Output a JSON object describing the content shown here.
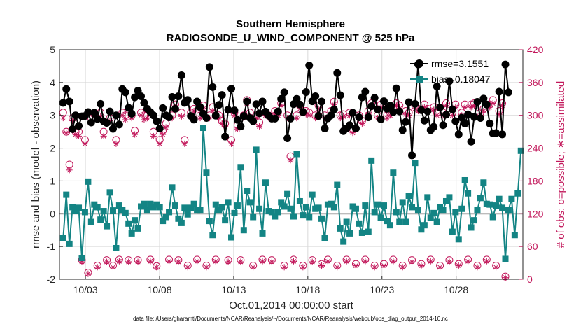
{
  "chart_data": {
    "type": "line",
    "title": "Southern Hemisphere",
    "subtitle": "RADIOSONDE_U_WIND_COMPONENT @ 525 hPa",
    "xlabel": "Oct.01,2014 00:00:00 start",
    "ylabel": "rmse and bias (model - observation)",
    "ylabel_right": "# of obs: o=possible; ∗=assimilated",
    "footnote": "data file: /Users/gharamti/Documents/NCAR/Reanalysis/~/Documents/NCAR/Reanalysis/webpub/obs_diag_output_2014-10.nc",
    "x_ticks": [
      "10/03",
      "10/08",
      "10/13",
      "10/18",
      "10/23",
      "10/28"
    ],
    "x_tick_days": [
      3,
      8,
      13,
      18,
      23,
      28
    ],
    "xlim_days": [
      1.25,
      32.5
    ],
    "ylim": [
      -2,
      5
    ],
    "y_ticks": [
      "-2",
      "-1",
      "0",
      "1",
      "2",
      "3",
      "4",
      "5"
    ],
    "ylim_right": [
      0,
      420
    ],
    "y_ticks_right": [
      "0",
      "60",
      "120",
      "180",
      "240",
      "300",
      "360",
      "420"
    ],
    "grid": true,
    "legend_placement": "top-right",
    "colors": {
      "rmse": "#000000",
      "bias": "#138484",
      "obs_count": "#c2185b",
      "zero_line": "#a6a6a6",
      "grid": "#d9d9d9"
    },
    "series": [
      {
        "name": "rmse",
        "legend_label": "rmse=3.1551",
        "axis": "left",
        "marker": "circle",
        "values": [
          3.38,
          3.8,
          3.42,
          2.58,
          3.0,
          2.68,
          2.97,
          2.98,
          3.1,
          2.78,
          3.08,
          2.89,
          3.35,
          2.82,
          2.77,
          3.12,
          2.59,
          3.0,
          2.72,
          3.8,
          3.7,
          3.23,
          3.05,
          3.55,
          3.75,
          3.58,
          3.38,
          3.2,
          3.1,
          3.0,
          2.82,
          2.6,
          3.22,
          3.0,
          2.94,
          3.56,
          3.2,
          3.58,
          4.22,
          3.38,
          3.47,
          2.98,
          2.87,
          3.42,
          3.25,
          3.05,
          2.92,
          4.47,
          3.86,
          2.99,
          3.32,
          3.62,
          2.35,
          3.17,
          3.81,
          3.15,
          2.86,
          2.66,
          2.98,
          3.42,
          2.92,
          2.82,
          3.34,
          3.06,
          3.42,
          3.11,
          2.99,
          2.9,
          2.9,
          3.12,
          3.5,
          3.7,
          2.3,
          2.9,
          3.34,
          3.5,
          3.33,
          3.1,
          3.71,
          4.52,
          3.43,
          3.58,
          2.98,
          3.42,
          2.6,
          2.91,
          3.0,
          3.18,
          4.29,
          3.61,
          2.52,
          2.6,
          2.7,
          3.08,
          2.6,
          2.94,
          3.55,
          3.72,
          2.94,
          3.28,
          3.53,
          3.18,
          2.88,
          3.43,
          3.2,
          3.3,
          3.1,
          3.82,
          3.12,
          2.55,
          2.8,
          3.4,
          1.78,
          3.35,
          4.55,
          3.16,
          2.84,
          3.12,
          2.55,
          2.65,
          3.88,
          3.24,
          2.7,
          3.02,
          4.04,
          3.18,
          2.82,
          2.42,
          2.93,
          2.75,
          3.03,
          2.2,
          2.95,
          3.41,
          2.92,
          3.51,
          3.33,
          2.75,
          2.45,
          2.46,
          3.72,
          2.42,
          4.55,
          3.7
        ]
      },
      {
        "name": "bias",
        "legend_label": "bias=0.18047",
        "axis": "left",
        "marker": "square",
        "values": [
          -0.75,
          0.58,
          -0.92,
          0.2,
          0.1,
          0.18,
          -1.35,
          0.05,
          0.98,
          -0.25,
          0.28,
          0.2,
          -0.18,
          0.08,
          -0.38,
          0.65,
          0.1,
          -1.05,
          0.25,
          0.12,
          0.02,
          -0.3,
          -0.6,
          -0.2,
          -0.45,
          0.22,
          0.3,
          0.12,
          0.3,
          0.2,
          0.28,
          0.2,
          -0.22,
          -0.1,
          0.05,
          0.8,
          0.25,
          -0.15,
          -0.28,
          0.18,
          -0.02,
          0.18,
          0.3,
          0.12,
          0.12,
          2.62,
          1.25,
          -0.22,
          -0.65,
          0.28,
          0.12,
          0.2,
          -0.2,
          0.35,
          -0.72,
          0.02,
          0.25,
          1.42,
          -0.5,
          0.7,
          0.35,
          -0.1,
          1.95,
          0.15,
          -0.6,
          0.95,
          0.08,
          0.05,
          -0.08,
          0.05,
          0.35,
          0.22,
          0.6,
          0.15,
          -0.08,
          1.82,
          0.38,
          -0.05,
          0.2,
          -0.1,
          0.58,
          0.15,
          0.18,
          -0.15,
          -0.75,
          0.28,
          0.3,
          0.2,
          0.88,
          -0.45,
          -0.85,
          -0.25,
          -0.6,
          0.22,
          0.15,
          -0.3,
          -0.58,
          0.25,
          -0.55,
          1.62,
          0.05,
          0.28,
          -0.12,
          0.25,
          -0.22,
          -0.35,
          1.25,
          0.05,
          -0.25,
          0.35,
          -0.25,
          0.55,
          0.2,
          1.55,
          0.12,
          -0.48,
          -0.35,
          0.5,
          -0.12,
          0.02,
          -0.25,
          0.2,
          0.12,
          0.38,
          0.5,
          -0.55,
          0.05,
          -0.78,
          0.15,
          1.02,
          0.62,
          -0.42,
          -0.2,
          0.12,
          0.48,
          0.95,
          0.3,
          0.28,
          -0.1,
          0.25,
          0.45,
          0.18,
          -1.38,
          0.12,
          0.45,
          -0.65,
          0.62,
          1.92
        ]
      },
      {
        "name": "possible",
        "axis": "right",
        "marker": "circle-open",
        "values": [
          305,
          270,
          210,
          295,
          270,
          270,
          35,
          255,
          12,
          295,
          302,
          25,
          305,
          270,
          35,
          295,
          25,
          255,
          36,
          305,
          300,
          35,
          300,
          272,
          35,
          305,
          300,
          300,
          36,
          270,
          24,
          255,
          272,
          285,
          36,
          300,
          320,
          35,
          305,
          255,
          25,
          305,
          312,
          36,
          300,
          318,
          25,
          300,
          315,
          36,
          300,
          290,
          285,
          35,
          255,
          305,
          282,
          35,
          300,
          328,
          305,
          25,
          300,
          287,
          36,
          305,
          300,
          35,
          308,
          305,
          322,
          25,
          300,
          225,
          36,
          300,
          318,
          25,
          308,
          305,
          35,
          300,
          318,
          28,
          300,
          36,
          308,
          325,
          25,
          300,
          302,
          36,
          305,
          275,
          28,
          300,
          290,
          36,
          308,
          322,
          25,
          300,
          320,
          28,
          300,
          305,
          36,
          322,
          318,
          25,
          308,
          305,
          35,
          318,
          312,
          28,
          320,
          312,
          36,
          315,
          305,
          25,
          305,
          322,
          35,
          305,
          320,
          28,
          305,
          320,
          36,
          320,
          322,
          25,
          305,
          312,
          36,
          320,
          328,
          25,
          308,
          322,
          5
        ]
      },
      {
        "name": "assimilated",
        "axis": "right",
        "marker": "star",
        "values": [
          295,
          268,
          200,
          290,
          265,
          262,
          32,
          248,
          10,
          288,
          298,
          22,
          298,
          262,
          32,
          290,
          22,
          248,
          33,
          300,
          292,
          32,
          295,
          265,
          32,
          300,
          292,
          295,
          33,
          262,
          22,
          248,
          265,
          278,
          33,
          295,
          315,
          32,
          298,
          248,
          22,
          298,
          308,
          33,
          295,
          312,
          22,
          295,
          308,
          33,
          295,
          285,
          280,
          32,
          248,
          300,
          275,
          32,
          295,
          322,
          298,
          22,
          295,
          280,
          33,
          300,
          295,
          32,
          302,
          300,
          318,
          22,
          295,
          218,
          33,
          295,
          312,
          22,
          302,
          300,
          32,
          295,
          312,
          25,
          295,
          33,
          302,
          320,
          22,
          295,
          298,
          33,
          300,
          268,
          25,
          295,
          285,
          33,
          302,
          318,
          22,
          295,
          315,
          25,
          295,
          300,
          33,
          318,
          312,
          22,
          302,
          300,
          32,
          312,
          308,
          25,
          315,
          308,
          33,
          310,
          300,
          22,
          300,
          318,
          32,
          300,
          315,
          25,
          300,
          315,
          33,
          315,
          318,
          22,
          300,
          308,
          33,
          315,
          322,
          22,
          302,
          318,
          3
        ]
      }
    ]
  }
}
